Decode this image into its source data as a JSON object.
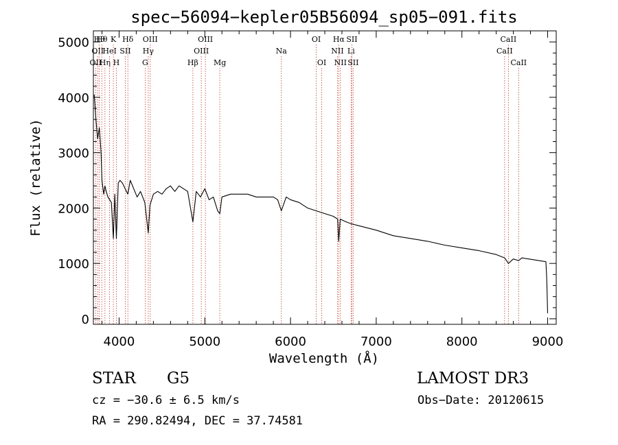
{
  "chart_data": {
    "type": "line",
    "title": "spec−56094−kepler05B56094_sp05−091.fits",
    "xlabel": "Wavelength (Å)",
    "ylabel": "Flux (relative)",
    "xlim": [
      3700,
      9100
    ],
    "ylim": [
      -100,
      5200
    ],
    "grid": false,
    "x_ticks": [
      {
        "value": 4000,
        "label": "4000"
      },
      {
        "value": 5000,
        "label": "5000"
      },
      {
        "value": 6000,
        "label": "6000"
      },
      {
        "value": 7000,
        "label": "7000"
      },
      {
        "value": 8000,
        "label": "8000"
      },
      {
        "value": 9000,
        "label": "9000"
      }
    ],
    "y_ticks": [
      {
        "value": 0,
        "label": "0"
      },
      {
        "value": 1000,
        "label": "1000"
      },
      {
        "value": 2000,
        "label": "2000"
      },
      {
        "value": 3000,
        "label": "3000"
      },
      {
        "value": 4000,
        "label": "4000"
      },
      {
        "value": 5000,
        "label": "5000"
      }
    ],
    "series": [
      {
        "name": "spectrum",
        "color": "#000000",
        "x": [
          3710,
          3730,
          3750,
          3770,
          3790,
          3800,
          3820,
          3835,
          3850,
          3870,
          3890,
          3910,
          3933,
          3950,
          3968,
          3990,
          4010,
          4040,
          4070,
          4102,
          4130,
          4170,
          4210,
          4250,
          4300,
          4340,
          4360,
          4400,
          4450,
          4500,
          4550,
          4600,
          4650,
          4700,
          4750,
          4800,
          4861,
          4900,
          4950,
          5000,
          5050,
          5100,
          5150,
          5175,
          5200,
          5300,
          5400,
          5500,
          5600,
          5700,
          5800,
          5850,
          5893,
          5950,
          6000,
          6100,
          6200,
          6300,
          6400,
          6500,
          6550,
          6563,
          6580,
          6650,
          6700,
          6800,
          7000,
          7200,
          7400,
          7600,
          7800,
          8000,
          8200,
          8400,
          8498,
          8542,
          8600,
          8662,
          8700,
          8900,
          8980,
          8990,
          9000
        ],
        "y": [
          4050,
          3600,
          3250,
          3450,
          3000,
          2500,
          2250,
          2400,
          2300,
          2200,
          2150,
          2100,
          1450,
          2250,
          1450,
          2450,
          2500,
          2450,
          2350,
          2250,
          2500,
          2350,
          2200,
          2300,
          2100,
          1550,
          2050,
          2250,
          2300,
          2250,
          2350,
          2400,
          2300,
          2400,
          2350,
          2300,
          1750,
          2300,
          2200,
          2350,
          2150,
          2200,
          1950,
          1900,
          2200,
          2250,
          2250,
          2250,
          2200,
          2200,
          2200,
          2150,
          1950,
          2200,
          2150,
          2100,
          2000,
          1950,
          1900,
          1850,
          1800,
          1400,
          1800,
          1750,
          1720,
          1680,
          1600,
          1500,
          1450,
          1400,
          1330,
          1280,
          1230,
          1160,
          1100,
          1000,
          1080,
          1050,
          1100,
          1050,
          1030,
          700,
          100
        ]
      }
    ],
    "line_markers": [
      {
        "wavelength": 3727,
        "labels": [
          "OII"
        ],
        "row": 2
      },
      {
        "wavelength": 3750,
        "labels": [
          "OII"
        ],
        "row": 1
      },
      {
        "wavelength": 3770,
        "labels": [
          "Hθ"
        ],
        "row": 0
      },
      {
        "wavelength": 3798,
        "labels": [
          "Hθ"
        ],
        "row": 0
      },
      {
        "wavelength": 3835,
        "labels": [
          "Hη"
        ],
        "row": 2
      },
      {
        "wavelength": 3889,
        "labels": [
          "HeI"
        ],
        "row": 1
      },
      {
        "wavelength": 3933,
        "labels": [
          "K"
        ],
        "row": 0
      },
      {
        "wavelength": 3968,
        "labels": [
          "H"
        ],
        "row": 2
      },
      {
        "wavelength": 4072,
        "labels": [
          "SII"
        ],
        "row": 1
      },
      {
        "wavelength": 4102,
        "labels": [
          "Hδ"
        ],
        "row": 0
      },
      {
        "wavelength": 4304,
        "labels": [
          "G"
        ],
        "row": 2
      },
      {
        "wavelength": 4340,
        "labels": [
          "Hγ"
        ],
        "row": 1
      },
      {
        "wavelength": 4363,
        "labels": [
          "OIII"
        ],
        "row": 0
      },
      {
        "wavelength": 4861,
        "labels": [
          "Hβ"
        ],
        "row": 2
      },
      {
        "wavelength": 4959,
        "labels": [
          "OIII"
        ],
        "row": 1
      },
      {
        "wavelength": 5007,
        "labels": [
          "OIII"
        ],
        "row": 0
      },
      {
        "wavelength": 5175,
        "labels": [
          "Mg"
        ],
        "row": 2
      },
      {
        "wavelength": 5893,
        "labels": [
          "Na"
        ],
        "row": 1
      },
      {
        "wavelength": 6300,
        "labels": [
          "OI"
        ],
        "row": 0
      },
      {
        "wavelength": 6364,
        "labels": [
          "OI"
        ],
        "row": 2
      },
      {
        "wavelength": 6548,
        "labels": [
          "NII"
        ],
        "row": 1
      },
      {
        "wavelength": 6563,
        "labels": [
          "Hα"
        ],
        "row": 0
      },
      {
        "wavelength": 6583,
        "labels": [
          "NII"
        ],
        "row": 2
      },
      {
        "wavelength": 6707,
        "labels": [
          "Li"
        ],
        "row": 1
      },
      {
        "wavelength": 6716,
        "labels": [
          "SII"
        ],
        "row": 0
      },
      {
        "wavelength": 6731,
        "labels": [
          "SII"
        ],
        "row": 2
      },
      {
        "wavelength": 8498,
        "labels": [
          "CaII"
        ],
        "row": 1
      },
      {
        "wavelength": 8542,
        "labels": [
          "CaII"
        ],
        "row": 0
      },
      {
        "wavelength": 8662,
        "labels": [
          "CaII"
        ],
        "row": 2
      }
    ],
    "line_marker_color": "#c0392b"
  },
  "info": {
    "object_class": "STAR",
    "subclass": "G5",
    "survey": "LAMOST DR3",
    "cz_line": "cz = −30.6 ± 6.5 km/s",
    "obs_date_line": "Obs−Date: 20120615",
    "radec_line": "RA = 290.82494, DEC =  37.74581"
  }
}
